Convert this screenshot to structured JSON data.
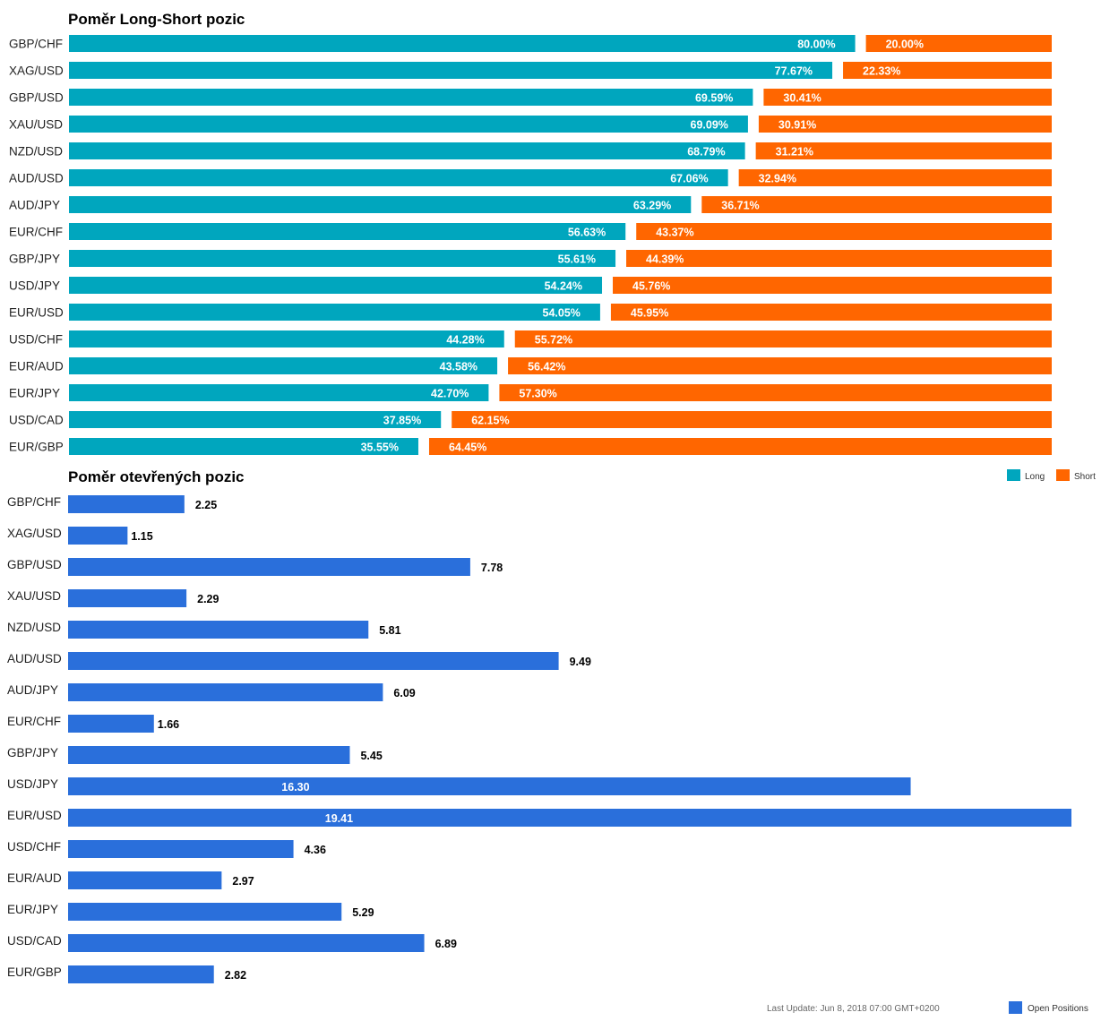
{
  "colors": {
    "long": "#00A6BE",
    "short": "#FF6600",
    "open": "#2A6FDB"
  },
  "footer": {
    "last_update": "Last Update: Jun 8, 2018 07:00 GMT+0200"
  },
  "chart_data": [
    {
      "type": "bar",
      "orientation": "horizontal",
      "stacked": true,
      "title": "Poměr Long-Short pozic",
      "categories": [
        "GBP/CHF",
        "XAG/USD",
        "GBP/USD",
        "XAU/USD",
        "NZD/USD",
        "AUD/USD",
        "AUD/JPY",
        "EUR/CHF",
        "GBP/JPY",
        "USD/JPY",
        "EUR/USD",
        "USD/CHF",
        "EUR/AUD",
        "EUR/JPY",
        "USD/CAD",
        "EUR/GBP"
      ],
      "series": [
        {
          "name": "Long",
          "values": [
            80.0,
            77.67,
            69.59,
            69.09,
            68.79,
            67.06,
            63.29,
            56.63,
            55.61,
            54.24,
            54.05,
            44.28,
            43.58,
            42.7,
            37.85,
            35.55
          ]
        },
        {
          "name": "Short",
          "values": [
            20.0,
            22.33,
            30.41,
            30.91,
            31.21,
            32.94,
            36.71,
            43.37,
            44.39,
            45.76,
            45.95,
            55.72,
            56.42,
            57.3,
            62.15,
            64.45
          ]
        }
      ],
      "data_labels": {
        "Long": [
          "80.00%",
          "77.67%",
          "69.59%",
          "69.09%",
          "68.79%",
          "67.06%",
          "63.29%",
          "56.63%",
          "55.61%",
          "54.24%",
          "54.05%",
          "44.28%",
          "43.58%",
          "42.70%",
          "37.85%",
          "35.55%"
        ],
        "Short": [
          "20.00%",
          "22.33%",
          "30.41%",
          "30.91%",
          "31.21%",
          "32.94%",
          "36.71%",
          "43.37%",
          "44.39%",
          "45.76%",
          "45.95%",
          "55.72%",
          "56.42%",
          "57.30%",
          "62.15%",
          "64.45%"
        ]
      },
      "xlim": [
        0,
        100
      ],
      "legend": "right",
      "grid": false
    },
    {
      "type": "bar",
      "orientation": "horizontal",
      "title": "Poměr otevřených pozic",
      "categories": [
        "GBP/CHF",
        "XAG/USD",
        "GBP/USD",
        "XAU/USD",
        "NZD/USD",
        "AUD/USD",
        "AUD/JPY",
        "EUR/CHF",
        "GBP/JPY",
        "USD/JPY",
        "EUR/USD",
        "USD/CHF",
        "EUR/AUD",
        "EUR/JPY",
        "USD/CAD",
        "EUR/GBP"
      ],
      "series": [
        {
          "name": "Open Positions",
          "values": [
            2.25,
            1.15,
            7.78,
            2.29,
            5.81,
            9.49,
            6.09,
            1.66,
            5.45,
            16.3,
            19.41,
            4.36,
            2.97,
            5.29,
            6.89,
            2.82
          ]
        }
      ],
      "data_labels": [
        "2.25",
        "1.15",
        "7.78",
        "2.29",
        "5.81",
        "9.49",
        "6.09",
        "1.66",
        "5.45",
        "16.30",
        "19.41",
        "4.36",
        "2.97",
        "5.29",
        "6.89",
        "2.82"
      ],
      "xlim": [
        0,
        19.41
      ],
      "legend": "bottom-right",
      "grid": false
    }
  ]
}
